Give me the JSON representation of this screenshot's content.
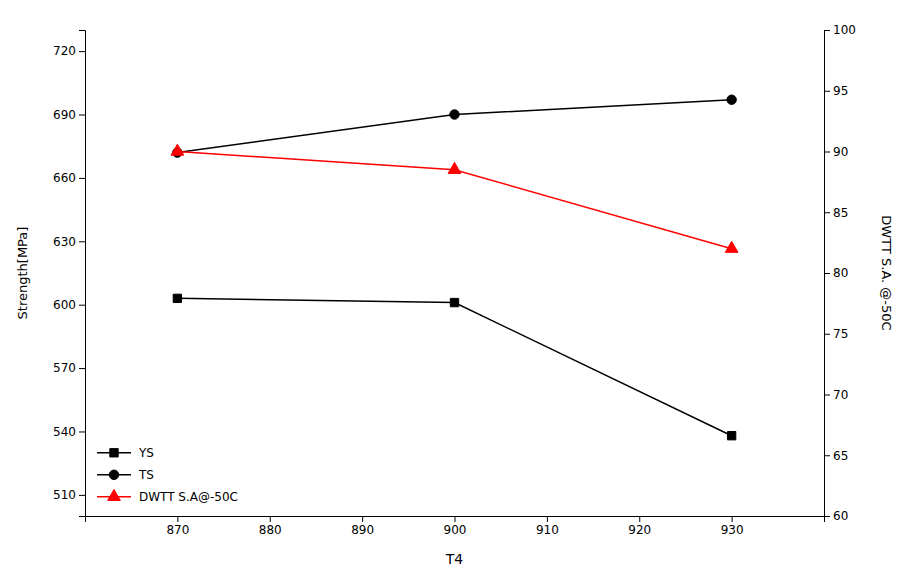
{
  "chart_data": {
    "type": "line",
    "xlabel": "T4",
    "ylabel": "Strength[MPa]",
    "y2label": "DWTT S.A. @-50C",
    "x": [
      870,
      900,
      930
    ],
    "series": [
      {
        "name": "YS",
        "color": "#000000",
        "marker": "square",
        "values": [
          603,
          601,
          538
        ]
      },
      {
        "name": "TS",
        "color": "#000000",
        "marker": "circle",
        "values": [
          672,
          690,
          697
        ]
      },
      {
        "name": "DWTT S.A@-50C",
        "color": "#ff0000",
        "marker": "triangle",
        "axis": "y2",
        "values": [
          90,
          88.5,
          82
        ]
      }
    ],
    "xlim": [
      860,
      940
    ],
    "xticks": [
      870,
      880,
      890,
      900,
      910,
      920,
      930
    ],
    "ylim": [
      500,
      730
    ],
    "yticks": [
      510,
      540,
      570,
      600,
      630,
      660,
      690,
      720
    ],
    "y2lim": [
      60,
      100
    ],
    "y2ticks": [
      60,
      65,
      70,
      75,
      80,
      85,
      90,
      95,
      100
    ],
    "grid": false,
    "legend": "lower left"
  }
}
